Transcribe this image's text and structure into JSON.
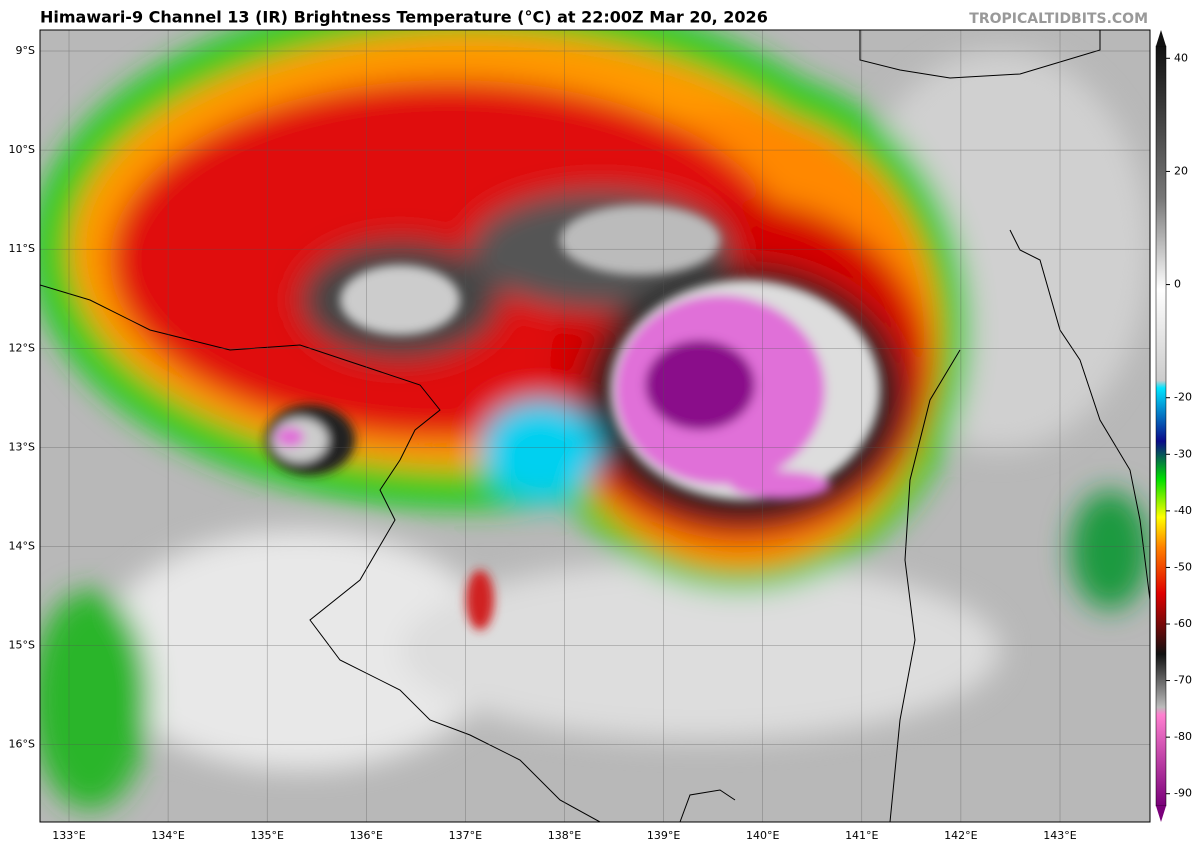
{
  "header": {
    "title": "Himawari-9 Channel 13 (IR) Brightness Temperature (°C) at 22:00Z Mar 20, 2026",
    "source": "TROPICALTIDBITS.COM"
  },
  "map": {
    "lat_labels": [
      "9°S",
      "10°S",
      "11°S",
      "12°S",
      "13°S",
      "14°S",
      "15°S",
      "16°S"
    ],
    "lon_labels": [
      "133°E",
      "134°E",
      "135°E",
      "136°E",
      "137°E",
      "138°E",
      "139°E",
      "140°E",
      "141°E",
      "142°E",
      "143°E"
    ]
  },
  "colorbar": {
    "range": [
      -95,
      45
    ],
    "ticks": [
      40,
      20,
      0,
      -20,
      -30,
      -40,
      -50,
      -60,
      -70,
      -80,
      -90
    ]
  }
}
